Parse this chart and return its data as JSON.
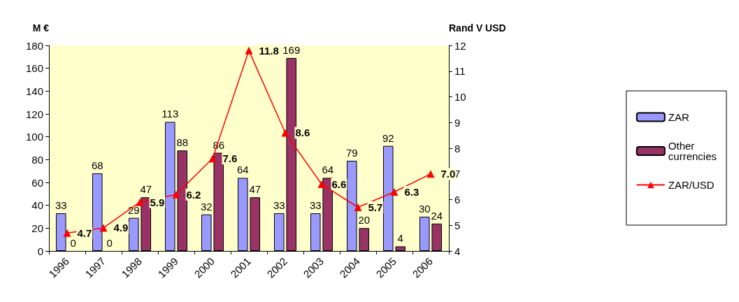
{
  "chart_data": {
    "type": "bar",
    "ylabel": "M €",
    "y2label": "Rand V USD",
    "categories": [
      "1996",
      "1997",
      "1998",
      "1999",
      "2000",
      "2001",
      "2002",
      "2003",
      "2004",
      "2005",
      "2006"
    ],
    "series": [
      {
        "name": "ZAR",
        "color": "#9999ff",
        "values": [
          33,
          68,
          29,
          113,
          32,
          64,
          33,
          33,
          79,
          92,
          30
        ]
      },
      {
        "name": "Other currencies",
        "color": "#993366",
        "values": [
          0,
          0,
          47,
          88,
          86,
          47,
          169,
          64,
          20,
          4,
          24
        ]
      },
      {
        "name": "ZAR/USD",
        "type": "line",
        "axis": "y2",
        "color": "#ff0000",
        "marker": "triangle",
        "values": [
          4.7,
          4.9,
          5.9,
          6.2,
          7.6,
          11.8,
          8.6,
          6.6,
          5.7,
          6.3,
          7.0
        ],
        "value_labels": [
          "4.7",
          "4.9",
          "5.9",
          "6.2",
          "7.6",
          "11.8",
          "8.6",
          "6.6",
          "5.7",
          "6.3",
          "7.0"
        ]
      }
    ],
    "ylim": [
      0,
      180
    ],
    "yticks": [
      0,
      20,
      40,
      60,
      80,
      100,
      120,
      140,
      160,
      180
    ],
    "y2lim": [
      4,
      12
    ],
    "y2ticks": [
      4,
      5,
      6,
      7,
      8,
      9,
      10,
      11,
      12
    ],
    "data_labels": true,
    "grid": false,
    "legend": "right"
  }
}
